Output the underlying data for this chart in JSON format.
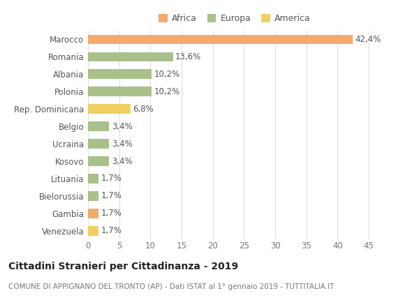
{
  "categories": [
    "Marocco",
    "Romania",
    "Albania",
    "Polonia",
    "Rep. Dominicana",
    "Belgio",
    "Ucraina",
    "Kosovo",
    "Lituania",
    "Bielorussia",
    "Gambia",
    "Venezuela"
  ],
  "values": [
    42.4,
    13.6,
    10.2,
    10.2,
    6.8,
    3.4,
    3.4,
    3.4,
    1.7,
    1.7,
    1.7,
    1.7
  ],
  "labels": [
    "42,4%",
    "13,6%",
    "10,2%",
    "10,2%",
    "6,8%",
    "3,4%",
    "3,4%",
    "3,4%",
    "1,7%",
    "1,7%",
    "1,7%",
    "1,7%"
  ],
  "colors": [
    "#F4A96D",
    "#A8C08A",
    "#A8C08A",
    "#A8C08A",
    "#F0D060",
    "#A8C08A",
    "#A8C08A",
    "#A8C08A",
    "#A8C08A",
    "#A8C08A",
    "#F4A96D",
    "#F0D060"
  ],
  "legend_labels": [
    "Africa",
    "Europa",
    "America"
  ],
  "legend_colors": [
    "#F4A96D",
    "#A8C08A",
    "#F0D060"
  ],
  "xlim": [
    0,
    47
  ],
  "xticks": [
    0,
    5,
    10,
    15,
    20,
    25,
    30,
    35,
    40,
    45
  ],
  "title": "Cittadini Stranieri per Cittadinanza - 2019",
  "subtitle": "COMUNE DI APPIGNANO DEL TRONTO (AP) - Dati ISTAT al 1° gennaio 2019 - TUTTITALIA.IT",
  "bar_height": 0.55,
  "bg_color": "#ffffff",
  "grid_color": "#dddddd",
  "label_fontsize": 8.5,
  "tick_fontsize": 8.5,
  "title_fontsize": 10,
  "subtitle_fontsize": 7.5
}
